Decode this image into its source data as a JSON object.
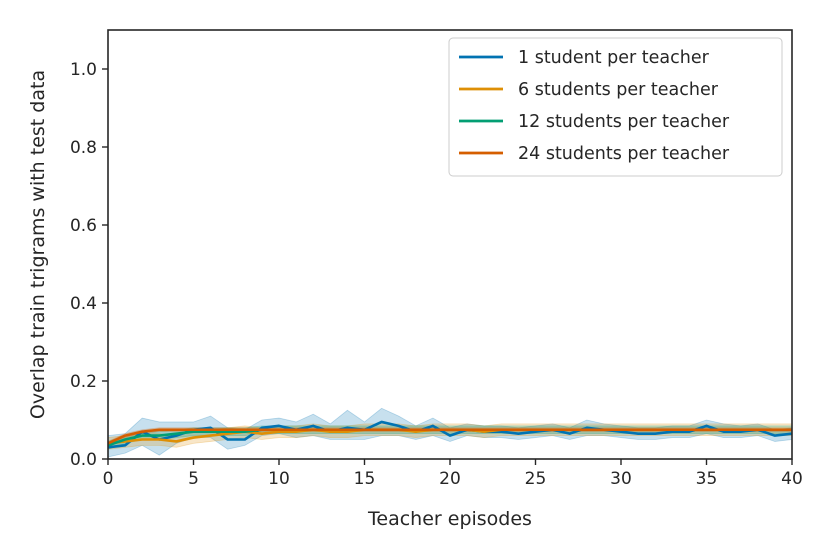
{
  "chart_data": {
    "type": "line",
    "xlabel": "Teacher episodes",
    "ylabel": "Overlap train trigrams with test data",
    "xlim": [
      0,
      40
    ],
    "ylim": [
      0,
      1.1
    ],
    "xticks": [
      0,
      5,
      10,
      15,
      20,
      25,
      30,
      35,
      40
    ],
    "yticks": [
      0.0,
      0.2,
      0.4,
      0.6,
      0.8,
      1.0
    ],
    "xtick_labels": [
      "0",
      "5",
      "10",
      "15",
      "20",
      "25",
      "30",
      "35",
      "40"
    ],
    "ytick_labels": [
      "0.0",
      "0.2",
      "0.4",
      "0.6",
      "0.8",
      "1.0"
    ],
    "grid": false,
    "legend_position": "top-right",
    "x": [
      0,
      1,
      2,
      3,
      4,
      5,
      6,
      7,
      8,
      9,
      10,
      11,
      12,
      13,
      14,
      15,
      16,
      17,
      18,
      19,
      20,
      21,
      22,
      23,
      24,
      25,
      26,
      27,
      28,
      29,
      30,
      31,
      32,
      33,
      34,
      35,
      36,
      37,
      38,
      39,
      40
    ],
    "series": [
      {
        "name": "1 student per teacher",
        "color": "#0173b2",
        "values": [
          0.03,
          0.035,
          0.07,
          0.05,
          0.06,
          0.075,
          0.08,
          0.05,
          0.05,
          0.08,
          0.085,
          0.075,
          0.085,
          0.07,
          0.08,
          0.075,
          0.095,
          0.085,
          0.07,
          0.085,
          0.06,
          0.075,
          0.07,
          0.07,
          0.065,
          0.07,
          0.075,
          0.065,
          0.08,
          0.075,
          0.07,
          0.065,
          0.065,
          0.07,
          0.07,
          0.085,
          0.07,
          0.07,
          0.075,
          0.06,
          0.065
        ],
        "band_lower": [
          0.005,
          0.015,
          0.035,
          0.01,
          0.04,
          0.055,
          0.055,
          0.025,
          0.035,
          0.06,
          0.065,
          0.055,
          0.06,
          0.05,
          0.05,
          0.05,
          0.06,
          0.06,
          0.05,
          0.06,
          0.045,
          0.06,
          0.055,
          0.055,
          0.05,
          0.055,
          0.06,
          0.05,
          0.06,
          0.06,
          0.055,
          0.05,
          0.05,
          0.055,
          0.055,
          0.065,
          0.055,
          0.055,
          0.06,
          0.045,
          0.05
        ],
        "band_upper": [
          0.06,
          0.065,
          0.105,
          0.095,
          0.095,
          0.095,
          0.11,
          0.08,
          0.075,
          0.1,
          0.105,
          0.095,
          0.115,
          0.09,
          0.125,
          0.095,
          0.13,
          0.11,
          0.085,
          0.105,
          0.08,
          0.09,
          0.085,
          0.085,
          0.08,
          0.085,
          0.09,
          0.08,
          0.1,
          0.09,
          0.085,
          0.08,
          0.08,
          0.085,
          0.085,
          0.1,
          0.09,
          0.085,
          0.09,
          0.075,
          0.08
        ]
      },
      {
        "name": "6 students per teacher",
        "color": "#de8f05",
        "values": [
          0.04,
          0.045,
          0.05,
          0.05,
          0.045,
          0.055,
          0.06,
          0.065,
          0.07,
          0.065,
          0.07,
          0.07,
          0.075,
          0.07,
          0.07,
          0.075,
          0.075,
          0.075,
          0.07,
          0.075,
          0.075,
          0.075,
          0.07,
          0.075,
          0.075,
          0.075,
          0.075,
          0.075,
          0.075,
          0.075,
          0.075,
          0.075,
          0.075,
          0.075,
          0.075,
          0.075,
          0.075,
          0.075,
          0.075,
          0.075,
          0.075
        ],
        "band_lower": [
          0.025,
          0.03,
          0.035,
          0.035,
          0.03,
          0.04,
          0.045,
          0.05,
          0.055,
          0.05,
          0.055,
          0.055,
          0.06,
          0.055,
          0.055,
          0.06,
          0.06,
          0.06,
          0.055,
          0.06,
          0.06,
          0.06,
          0.055,
          0.06,
          0.06,
          0.06,
          0.06,
          0.06,
          0.06,
          0.06,
          0.06,
          0.06,
          0.06,
          0.06,
          0.06,
          0.06,
          0.06,
          0.06,
          0.06,
          0.06,
          0.06
        ],
        "band_upper": [
          0.055,
          0.06,
          0.065,
          0.065,
          0.06,
          0.07,
          0.075,
          0.08,
          0.085,
          0.08,
          0.085,
          0.085,
          0.09,
          0.085,
          0.085,
          0.09,
          0.09,
          0.09,
          0.085,
          0.09,
          0.09,
          0.09,
          0.085,
          0.09,
          0.09,
          0.09,
          0.09,
          0.09,
          0.09,
          0.09,
          0.09,
          0.09,
          0.09,
          0.09,
          0.09,
          0.09,
          0.09,
          0.09,
          0.09,
          0.09,
          0.09
        ]
      },
      {
        "name": "12 students per teacher",
        "color": "#029e73",
        "values": [
          0.035,
          0.05,
          0.06,
          0.06,
          0.065,
          0.07,
          0.07,
          0.07,
          0.07,
          0.075,
          0.075,
          0.075,
          0.075,
          0.075,
          0.075,
          0.075,
          0.075,
          0.075,
          0.075,
          0.075,
          0.075,
          0.075,
          0.075,
          0.075,
          0.075,
          0.075,
          0.075,
          0.075,
          0.075,
          0.075,
          0.075,
          0.075,
          0.075,
          0.075,
          0.075,
          0.075,
          0.075,
          0.075,
          0.075,
          0.075,
          0.075
        ],
        "band_lower": [
          0.025,
          0.04,
          0.05,
          0.05,
          0.055,
          0.06,
          0.06,
          0.06,
          0.06,
          0.065,
          0.065,
          0.065,
          0.065,
          0.065,
          0.065,
          0.065,
          0.065,
          0.065,
          0.065,
          0.065,
          0.065,
          0.065,
          0.065,
          0.065,
          0.065,
          0.065,
          0.065,
          0.065,
          0.065,
          0.065,
          0.065,
          0.065,
          0.065,
          0.065,
          0.065,
          0.065,
          0.065,
          0.065,
          0.065,
          0.065,
          0.065
        ],
        "band_upper": [
          0.045,
          0.06,
          0.07,
          0.07,
          0.075,
          0.08,
          0.08,
          0.08,
          0.08,
          0.085,
          0.085,
          0.085,
          0.085,
          0.085,
          0.085,
          0.085,
          0.085,
          0.085,
          0.085,
          0.085,
          0.085,
          0.085,
          0.085,
          0.085,
          0.085,
          0.085,
          0.085,
          0.085,
          0.085,
          0.085,
          0.085,
          0.085,
          0.085,
          0.085,
          0.085,
          0.085,
          0.085,
          0.085,
          0.085,
          0.085,
          0.085
        ]
      },
      {
        "name": "24 students per teacher",
        "color": "#d55e00",
        "values": [
          0.04,
          0.06,
          0.07,
          0.075,
          0.075,
          0.075,
          0.075,
          0.075,
          0.075,
          0.075,
          0.075,
          0.075,
          0.075,
          0.075,
          0.075,
          0.075,
          0.075,
          0.075,
          0.075,
          0.075,
          0.075,
          0.075,
          0.075,
          0.075,
          0.075,
          0.075,
          0.075,
          0.075,
          0.075,
          0.075,
          0.075,
          0.075,
          0.075,
          0.075,
          0.075,
          0.075,
          0.075,
          0.075,
          0.075,
          0.075,
          0.075
        ],
        "band_lower": [
          0.035,
          0.055,
          0.065,
          0.07,
          0.07,
          0.07,
          0.07,
          0.07,
          0.07,
          0.07,
          0.07,
          0.07,
          0.07,
          0.07,
          0.07,
          0.07,
          0.07,
          0.07,
          0.07,
          0.07,
          0.07,
          0.07,
          0.07,
          0.07,
          0.07,
          0.07,
          0.07,
          0.07,
          0.07,
          0.07,
          0.07,
          0.07,
          0.07,
          0.07,
          0.07,
          0.07,
          0.07,
          0.07,
          0.07,
          0.07,
          0.07
        ],
        "band_upper": [
          0.045,
          0.065,
          0.075,
          0.08,
          0.08,
          0.08,
          0.08,
          0.08,
          0.08,
          0.08,
          0.08,
          0.08,
          0.08,
          0.08,
          0.08,
          0.08,
          0.08,
          0.08,
          0.08,
          0.08,
          0.08,
          0.08,
          0.08,
          0.08,
          0.08,
          0.08,
          0.08,
          0.08,
          0.08,
          0.08,
          0.08,
          0.08,
          0.08,
          0.08,
          0.08,
          0.08,
          0.08,
          0.08,
          0.08,
          0.08,
          0.08
        ]
      }
    ]
  }
}
